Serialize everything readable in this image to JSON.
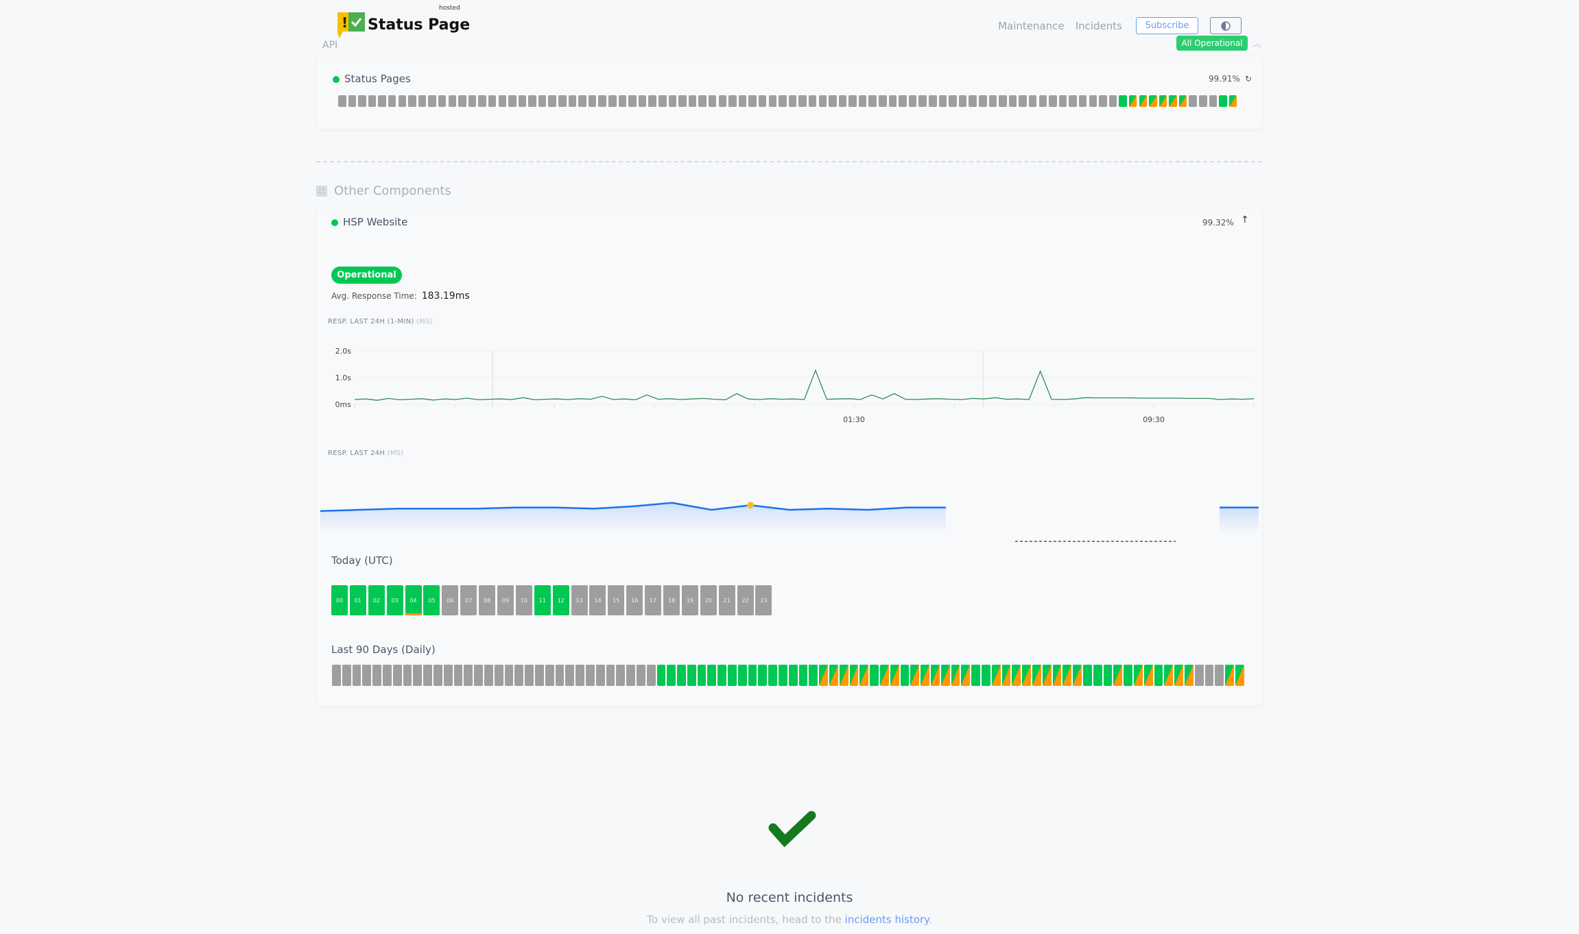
{
  "header": {
    "logo_text": "Status Page",
    "logo_hosted": "hosted",
    "api_label": "API",
    "nav": [
      "Maintenance",
      "Incidents"
    ],
    "subscribe_label": "Subscribe",
    "theme_toggle_icon": "half-circle-icon",
    "overall_status": "All Operational",
    "collapse_icon": "chevron-up-icon"
  },
  "colors": {
    "operational": "#00c853",
    "partial": "#ff9800",
    "nodata": "#9e9e9e",
    "link": "#6b9cf0",
    "check": "#157a1e"
  },
  "api_group": {
    "component": {
      "name": "Status Pages",
      "uptime": "99.91%",
      "history": "xxxxxxxxxxxxxxxxxxxxxxxxxxxxxxxxxxxxxxxxxxxxxxxxxxxxxxxxxxxxxxxxxxxxxxxxxxxxxxgmmmmmmxxxgm"
    }
  },
  "other": {
    "title": "Other Components",
    "component": {
      "name": "HSP Website",
      "uptime": "99.32%",
      "status": "Operational",
      "avg_label": "Avg. Response Time:",
      "avg_value": "183.19ms",
      "chart1_label": "RESP. LAST 24H (1-MIN)",
      "chart1_unit": "(MS)",
      "chart2_label": "RESP. LAST 24H",
      "chart2_unit": "(MS)",
      "today_label": "Today (UTC)",
      "today": [
        {
          "h": "00",
          "s": "g"
        },
        {
          "h": "01",
          "s": "g"
        },
        {
          "h": "02",
          "s": "g"
        },
        {
          "h": "03",
          "s": "g"
        },
        {
          "h": "04",
          "s": "g",
          "warn": true
        },
        {
          "h": "05",
          "s": "g"
        },
        {
          "h": "06",
          "s": "x"
        },
        {
          "h": "07",
          "s": "x"
        },
        {
          "h": "08",
          "s": "x"
        },
        {
          "h": "09",
          "s": "x"
        },
        {
          "h": "10",
          "s": "x"
        },
        {
          "h": "11",
          "s": "g"
        },
        {
          "h": "12",
          "s": "g"
        },
        {
          "h": "13",
          "s": "x"
        },
        {
          "h": "14",
          "s": "x"
        },
        {
          "h": "15",
          "s": "x"
        },
        {
          "h": "16",
          "s": "x"
        },
        {
          "h": "17",
          "s": "x"
        },
        {
          "h": "18",
          "s": "x"
        },
        {
          "h": "19",
          "s": "x"
        },
        {
          "h": "20",
          "s": "x"
        },
        {
          "h": "21",
          "s": "x"
        },
        {
          "h": "22",
          "s": "x"
        },
        {
          "h": "23",
          "s": "x"
        }
      ],
      "days_label": "Last 90 Days (Daily)",
      "days": "xxxxxxxxxxxxxxxxxxxxxxxxxxxxxxxxggggggggggggggggmmmmmgmmgmmmmmmggmmmmmmmmmgggmgmmgmmmxxxmm"
    }
  },
  "chart_data": [
    {
      "type": "line",
      "yticks": [
        "2.0s",
        "1.0s",
        "0ms"
      ],
      "ylim": [
        0,
        2.0
      ],
      "xticks": [
        "01:30",
        "09:30"
      ],
      "y": [
        0.18,
        0.2,
        0.15,
        0.22,
        0.17,
        0.19,
        0.21,
        0.16,
        0.2,
        0.18,
        0.23,
        0.17,
        0.19,
        0.2,
        0.18,
        0.25,
        0.17,
        0.19,
        0.2,
        0.18,
        0.21,
        0.19,
        0.3,
        0.18,
        0.2,
        0.17,
        0.35,
        0.19,
        0.21,
        0.18,
        0.2,
        0.22,
        0.19,
        0.17,
        0.4,
        0.2,
        0.18,
        0.21,
        0.19,
        0.2,
        0.18,
        1.27,
        0.19,
        0.2,
        0.21,
        0.18,
        0.35,
        0.2,
        0.4,
        0.19,
        0.18,
        0.2,
        0.21,
        0.19,
        0.18,
        0.22,
        0.2,
        0.25,
        0.19,
        0.2,
        0.18,
        1.24,
        0.19,
        0.18,
        0.2,
        0.25,
        0.24,
        0.24,
        0.24,
        0.24,
        0.23,
        0.23,
        0.23,
        0.23,
        0.22,
        0.22,
        0.22,
        0.18,
        0.2,
        0.19,
        0.21
      ]
    },
    {
      "type": "area",
      "y": [
        0.19,
        0.2,
        0.21,
        0.21,
        0.21,
        0.22,
        0.22,
        0.21,
        0.23,
        0.26,
        0.2,
        0.24,
        0.2,
        0.21,
        0.2,
        0.22,
        0.22,
        null,
        null,
        null,
        null,
        null,
        null,
        0.22,
        0.22
      ],
      "highlight_index": 11
    }
  ],
  "incidents": {
    "title": "No recent incidents",
    "text": "To view all past incidents, head to the",
    "link": "incidents history",
    "end": "."
  }
}
